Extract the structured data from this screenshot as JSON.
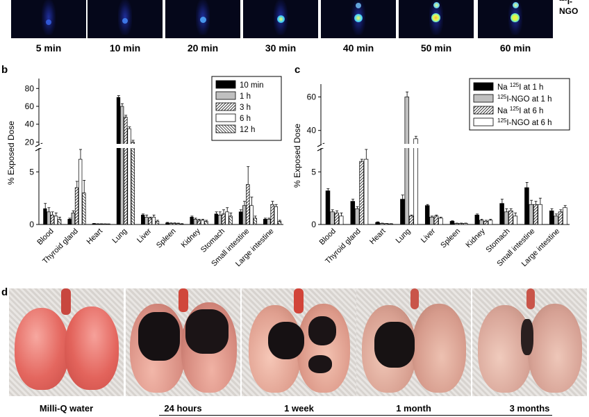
{
  "panel_a": {
    "time_labels": [
      "5 min",
      "10 min",
      "20 min",
      "30 min",
      "40 min",
      "50 min",
      "60 min"
    ],
    "corner_label": "I-NGO"
  },
  "panel_letters": {
    "b": "b",
    "c": "c",
    "d": "d"
  },
  "chart_data": [
    {
      "type": "bar",
      "panel": "b",
      "ylabel": "% Exposed Dose",
      "categories": [
        "Blood",
        "Thyroid gland",
        "Heart",
        "Lung",
        "Liver",
        "Spleen",
        "Kidney",
        "Stomach",
        "Small intestine",
        "Large intestine"
      ],
      "yticks_lower": [
        "0",
        "5"
      ],
      "yticks_upper": [
        "20",
        "40",
        "60",
        "80"
      ],
      "ylim_lower": [
        0,
        7
      ],
      "ylim_upper": [
        18,
        88
      ],
      "series": [
        {
          "name": "10 min",
          "values": [
            1.5,
            0.5,
            0.08,
            70,
            0.9,
            0.15,
            0.7,
            1.0,
            1.2,
            0.5
          ],
          "errors": [
            0.5,
            0.1,
            0.02,
            2,
            0.1,
            0.05,
            0.1,
            0.2,
            0.2,
            0.1
          ]
        },
        {
          "name": "1 h",
          "values": [
            1.2,
            1.1,
            0.05,
            60,
            0.7,
            0.1,
            0.5,
            0.9,
            1.8,
            0.5
          ],
          "errors": [
            0.4,
            0.2,
            0.02,
            3,
            0.2,
            0.05,
            0.1,
            0.3,
            0.4,
            0.1
          ]
        },
        {
          "name": "3 h",
          "values": [
            0.9,
            3.5,
            0.05,
            48,
            0.6,
            0.1,
            0.4,
            1.0,
            3.8,
            1.9
          ],
          "errors": [
            0.3,
            0.6,
            0.02,
            2,
            0.1,
            0.05,
            0.1,
            0.4,
            1.7,
            0.3
          ]
        },
        {
          "name": "6 h",
          "values": [
            0.8,
            6.2,
            0.04,
            35,
            0.7,
            0.08,
            0.4,
            1.2,
            1.8,
            1.7
          ],
          "errors": [
            0.3,
            1.4,
            0.02,
            2,
            0.2,
            0.05,
            0.1,
            0.4,
            0.8,
            0.2
          ]
        },
        {
          "name": "12 h",
          "values": [
            0.5,
            3.0,
            0.03,
            20,
            0.3,
            0.05,
            0.3,
            0.8,
            0.6,
            0.3
          ],
          "errors": [
            0.2,
            1.2,
            0.02,
            2,
            0.1,
            0.03,
            0.1,
            0.3,
            0.2,
            0.1
          ]
        }
      ]
    },
    {
      "type": "bar",
      "panel": "c",
      "ylabel": "% Exposed Dose",
      "categories": [
        "Blood",
        "Thyroid gland",
        "Heart",
        "Lung",
        "Liver",
        "Spleen",
        "Kidney",
        "Stomach",
        "Small intestine",
        "Large intestine"
      ],
      "yticks_lower": [
        "0",
        "5"
      ],
      "yticks_upper": [
        "40",
        "60"
      ],
      "ylim_lower": [
        0,
        7
      ],
      "ylim_upper": [
        32,
        66
      ],
      "series": [
        {
          "name_prefix": "Na ",
          "name_sup": "125",
          "name_suffix": "I at 1 h",
          "values": [
            3.2,
            2.2,
            0.2,
            2.4,
            1.8,
            0.3,
            0.9,
            2.0,
            3.5,
            1.3
          ],
          "errors": [
            0.2,
            0.2,
            0.05,
            0.4,
            0.1,
            0.05,
            0.1,
            0.4,
            0.5,
            0.2
          ]
        },
        {
          "name_prefix": "",
          "name_sup": "125",
          "name_suffix": "I-NGO at 1 h",
          "values": [
            1.2,
            1.5,
            0.1,
            60,
            0.7,
            0.1,
            0.4,
            1.2,
            1.9,
            0.8
          ],
          "errors": [
            0.2,
            0.2,
            0.03,
            3,
            0.1,
            0.03,
            0.1,
            0.3,
            0.4,
            0.2
          ]
        },
        {
          "name_prefix": "Na ",
          "name_sup": "125",
          "name_suffix": "I at 6 h",
          "values": [
            1.1,
            6.0,
            0.08,
            0.8,
            0.8,
            0.1,
            0.3,
            1.3,
            1.9,
            1.2
          ],
          "errors": [
            0.2,
            0.2,
            0.02,
            0.1,
            0.1,
            0.03,
            0.1,
            0.2,
            0.3,
            0.2
          ]
        },
        {
          "name_prefix": "",
          "name_sup": "125",
          "name_suffix": "I-NGO at 6 h",
          "values": [
            0.8,
            6.2,
            0.06,
            35,
            0.6,
            0.1,
            0.4,
            0.8,
            1.9,
            1.6
          ],
          "errors": [
            0.3,
            1.4,
            0.02,
            1.5,
            0.1,
            0.03,
            0.1,
            0.3,
            0.6,
            0.2
          ]
        }
      ]
    }
  ],
  "panel_d": {
    "labels": [
      "Milli-Q water",
      "24 hours",
      "1 week",
      "1 month",
      "3 months"
    ]
  }
}
